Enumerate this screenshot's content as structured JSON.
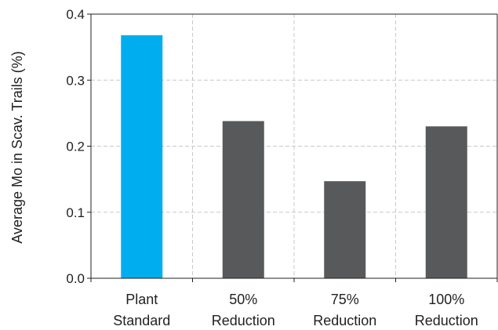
{
  "chart_data": {
    "type": "bar",
    "categories": [
      [
        "Plant",
        "Standard"
      ],
      [
        "50%",
        "Reduction"
      ],
      [
        "75%",
        "Reduction"
      ],
      [
        "100%",
        "Reduction"
      ]
    ],
    "values": [
      0.368,
      0.238,
      0.147,
      0.23
    ],
    "bar_colors": [
      "#00aeef",
      "#58595b",
      "#58595b",
      "#58595b"
    ],
    "ylabel": "Average Mo in Scav. Trails (%)",
    "xlabel": "",
    "ylim": [
      0,
      0.4
    ],
    "yticks": [
      "0.0",
      "0.1",
      "0.2",
      "0.3",
      "0.4"
    ],
    "grid": true,
    "grid_color": "#c8c8c8",
    "axis_color": "#231f20"
  }
}
